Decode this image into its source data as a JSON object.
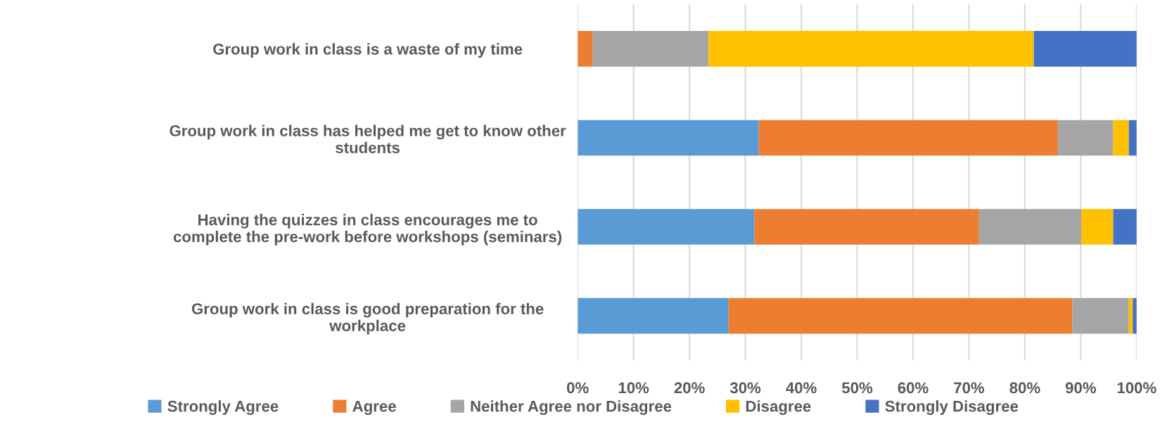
{
  "chart_data": {
    "type": "bar",
    "orientation": "horizontal",
    "stacked": true,
    "categories": [
      "Group work in class is a waste of my time",
      "Group work in class has helped me get to know other students",
      "Having the quizzes in class encourages me to complete the pre-work before workshops (seminars)",
      "Group work in class is good preparation for the workplace"
    ],
    "series": [
      {
        "name": "Strongly Agree",
        "color": "#5b9bd5",
        "values": [
          0,
          32.4,
          31.6,
          27.0
        ]
      },
      {
        "name": "Agree",
        "color": "#ed7d31",
        "values": [
          2.7,
          53.5,
          40.2,
          61.5
        ]
      },
      {
        "name": "Neither Agree nor Disagree",
        "color": "#a5a5a5",
        "values": [
          20.7,
          9.9,
          18.3,
          10.1
        ]
      },
      {
        "name": "Disagree",
        "color": "#ffc000",
        "values": [
          58.2,
          2.8,
          5.7,
          0.7
        ]
      },
      {
        "name": "Strongly Disagree",
        "color": "#4472c4",
        "values": [
          18.4,
          1.4,
          4.2,
          0.7
        ]
      }
    ],
    "xlim": [
      0,
      100
    ],
    "xticks": [
      {
        "value": 0,
        "label": "0%"
      },
      {
        "value": 10,
        "label": "10%"
      },
      {
        "value": 20,
        "label": "20%"
      },
      {
        "value": 30,
        "label": "30%"
      },
      {
        "value": 40,
        "label": "40%"
      },
      {
        "value": 50,
        "label": "50%"
      },
      {
        "value": 60,
        "label": "60%"
      },
      {
        "value": 70,
        "label": "70%"
      },
      {
        "value": 80,
        "label": "80%"
      },
      {
        "value": 90,
        "label": "90%"
      },
      {
        "value": 100,
        "label": "100%"
      }
    ],
    "grid": "x",
    "legend": "bottom"
  }
}
